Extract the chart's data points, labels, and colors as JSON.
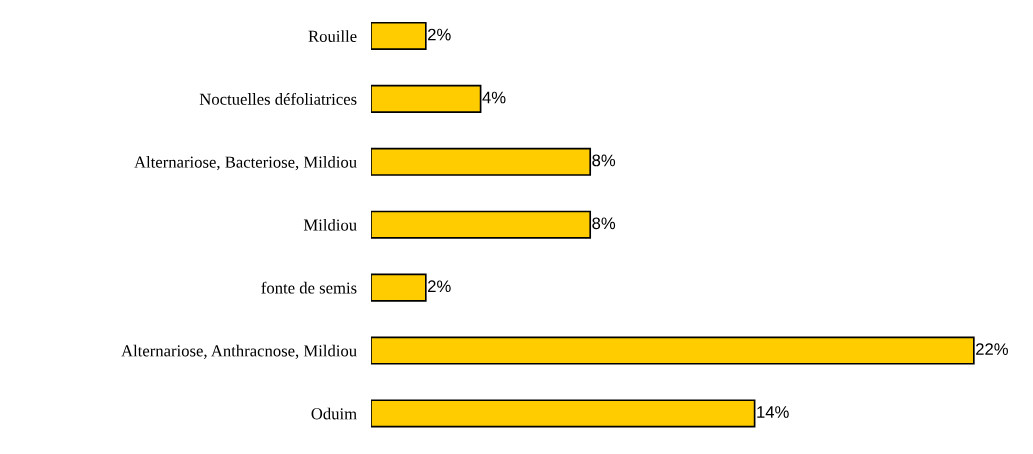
{
  "chart_data": {
    "type": "bar",
    "orientation": "horizontal",
    "categories": [
      "Rouille",
      "Noctuelles défoliatrices",
      "Alternariose, Bacteriose, Mildiou",
      "Mildiou",
      "fonte de semis",
      "Alternariose, Anthracnose, Mildiou",
      "Oduim"
    ],
    "values": [
      2,
      4,
      8,
      8,
      2,
      22,
      14
    ],
    "value_labels": [
      "2%",
      "4%",
      "8%",
      "8%",
      "2%",
      "22%",
      "14%"
    ],
    "color": "#ffcc00"
  }
}
